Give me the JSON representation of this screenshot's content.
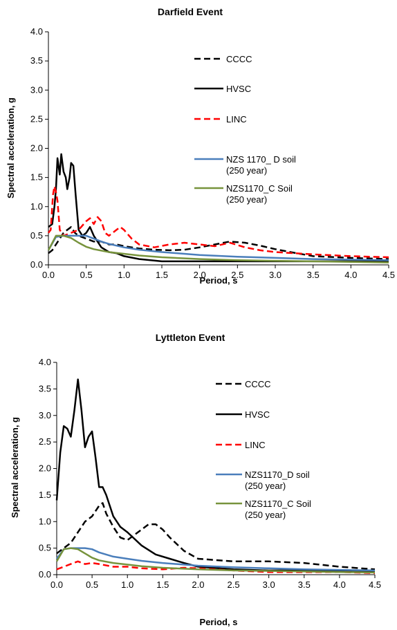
{
  "chart_data": [
    {
      "type": "line",
      "title": "Darfield Event",
      "xlabel": "Period, s",
      "ylabel": "Spectral acceleration, g",
      "xlim": [
        0,
        4.5
      ],
      "ylim": [
        0,
        4.0
      ],
      "x_ticks": [
        "0.0",
        "0.5",
        "1.0",
        "1.5",
        "2.0",
        "2.5",
        "3.0",
        "3.5",
        "4.0",
        "4.5"
      ],
      "y_ticks": [
        "0.0",
        "0.5",
        "1.0",
        "1.5",
        "2.0",
        "2.5",
        "3.0",
        "3.5",
        "4.0"
      ],
      "grid": false,
      "legend_position": "top-right",
      "series": [
        {
          "name": "CCCC",
          "color": "#000000",
          "style": "dashed",
          "x": [
            0.0,
            0.05,
            0.1,
            0.15,
            0.2,
            0.25,
            0.3,
            0.35,
            0.4,
            0.5,
            0.6,
            0.7,
            0.8,
            0.9,
            1.0,
            1.2,
            1.4,
            1.6,
            1.8,
            2.0,
            2.2,
            2.4,
            2.6,
            2.8,
            3.0,
            3.2,
            3.5,
            4.0,
            4.5
          ],
          "y": [
            0.2,
            0.25,
            0.35,
            0.45,
            0.55,
            0.6,
            0.65,
            0.55,
            0.5,
            0.45,
            0.4,
            0.4,
            0.35,
            0.35,
            0.32,
            0.28,
            0.26,
            0.25,
            0.26,
            0.3,
            0.35,
            0.4,
            0.38,
            0.33,
            0.27,
            0.22,
            0.15,
            0.12,
            0.1
          ]
        },
        {
          "name": "HVSC",
          "color": "#000000",
          "style": "solid",
          "x": [
            0.0,
            0.05,
            0.08,
            0.1,
            0.12,
            0.15,
            0.17,
            0.2,
            0.23,
            0.25,
            0.28,
            0.3,
            0.33,
            0.36,
            0.4,
            0.45,
            0.5,
            0.55,
            0.6,
            0.7,
            0.8,
            0.9,
            1.0,
            1.2,
            1.5,
            2.0,
            2.5,
            3.0,
            3.5,
            4.0,
            4.5
          ],
          "y": [
            0.65,
            0.7,
            1.0,
            1.3,
            1.83,
            1.55,
            1.9,
            1.6,
            1.5,
            1.3,
            1.5,
            1.75,
            1.7,
            1.2,
            0.6,
            0.5,
            0.55,
            0.65,
            0.5,
            0.3,
            0.22,
            0.2,
            0.15,
            0.1,
            0.06,
            0.06,
            0.06,
            0.06,
            0.06,
            0.06,
            0.06
          ]
        },
        {
          "name": "LINC",
          "color": "#ff0000",
          "style": "dashed",
          "x": [
            0.0,
            0.03,
            0.06,
            0.08,
            0.1,
            0.12,
            0.15,
            0.2,
            0.3,
            0.4,
            0.5,
            0.55,
            0.6,
            0.65,
            0.7,
            0.75,
            0.8,
            0.9,
            0.95,
            1.0,
            1.1,
            1.2,
            1.4,
            1.6,
            1.8,
            2.0,
            2.2,
            2.4,
            2.6,
            2.8,
            3.0,
            3.5,
            4.0,
            4.5
          ],
          "y": [
            0.55,
            0.6,
            1.2,
            1.35,
            1.25,
            1.1,
            0.6,
            0.5,
            0.55,
            0.6,
            0.75,
            0.8,
            0.7,
            0.82,
            0.75,
            0.55,
            0.5,
            0.6,
            0.65,
            0.6,
            0.45,
            0.35,
            0.3,
            0.35,
            0.38,
            0.35,
            0.32,
            0.38,
            0.3,
            0.25,
            0.22,
            0.18,
            0.15,
            0.13
          ]
        },
        {
          "name": "NZS 1170_ D soil (250 year)",
          "color": "#4a7ebb",
          "style": "solid",
          "x": [
            0.0,
            0.1,
            0.2,
            0.3,
            0.4,
            0.5,
            0.6,
            0.7,
            0.8,
            1.0,
            1.2,
            1.5,
            2.0,
            2.5,
            3.0,
            3.5,
            4.0,
            4.5
          ],
          "y": [
            0.25,
            0.48,
            0.5,
            0.5,
            0.5,
            0.5,
            0.45,
            0.4,
            0.36,
            0.3,
            0.26,
            0.22,
            0.17,
            0.14,
            0.12,
            0.1,
            0.09,
            0.08
          ]
        },
        {
          "name": "NZS1170_C Soil (250 year)",
          "color": "#77933c",
          "style": "solid",
          "x": [
            0.0,
            0.1,
            0.2,
            0.3,
            0.4,
            0.5,
            0.6,
            0.8,
            1.0,
            1.2,
            1.5,
            2.0,
            2.5,
            3.0,
            3.5,
            4.0,
            4.5
          ],
          "y": [
            0.25,
            0.5,
            0.5,
            0.46,
            0.38,
            0.31,
            0.27,
            0.22,
            0.19,
            0.16,
            0.13,
            0.1,
            0.08,
            0.07,
            0.06,
            0.05,
            0.04
          ]
        }
      ]
    },
    {
      "type": "line",
      "title": "Lyttleton Event",
      "xlabel": "Period, s",
      "ylabel": "Spectral acceleration, g",
      "xlim": [
        0,
        4.5
      ],
      "ylim": [
        0,
        4.0
      ],
      "x_ticks": [
        "0.0",
        "0.5",
        "1.0",
        "1.5",
        "2.0",
        "2.5",
        "3.0",
        "3.5",
        "4.0",
        "4.5"
      ],
      "y_ticks": [
        "0.0",
        "0.5",
        "1.0",
        "1.5",
        "2.0",
        "2.5",
        "3.0",
        "3.5",
        "4.0"
      ],
      "grid": false,
      "legend_position": "top-right",
      "series": [
        {
          "name": "CCCC",
          "color": "#000000",
          "style": "dashed",
          "x": [
            0.0,
            0.1,
            0.2,
            0.3,
            0.4,
            0.5,
            0.6,
            0.65,
            0.7,
            0.8,
            0.9,
            1.0,
            1.1,
            1.2,
            1.3,
            1.4,
            1.5,
            1.6,
            1.8,
            2.0,
            2.5,
            3.0,
            3.5,
            4.0,
            4.5
          ],
          "y": [
            0.4,
            0.5,
            0.6,
            0.8,
            1.0,
            1.1,
            1.3,
            1.35,
            1.15,
            0.9,
            0.7,
            0.65,
            0.75,
            0.85,
            0.95,
            0.95,
            0.85,
            0.7,
            0.45,
            0.3,
            0.25,
            0.25,
            0.22,
            0.15,
            0.1
          ]
        },
        {
          "name": "HVSC",
          "color": "#000000",
          "style": "solid",
          "x": [
            0.0,
            0.05,
            0.1,
            0.15,
            0.2,
            0.25,
            0.3,
            0.35,
            0.4,
            0.45,
            0.5,
            0.55,
            0.6,
            0.65,
            0.7,
            0.8,
            0.9,
            1.0,
            1.2,
            1.4,
            1.6,
            1.8,
            2.0,
            2.5,
            3.0,
            3.5,
            4.0,
            4.5
          ],
          "y": [
            1.4,
            2.3,
            2.8,
            2.75,
            2.6,
            3.1,
            3.68,
            3.1,
            2.4,
            2.6,
            2.7,
            2.2,
            1.65,
            1.65,
            1.5,
            1.1,
            0.9,
            0.8,
            0.55,
            0.38,
            0.3,
            0.22,
            0.15,
            0.1,
            0.08,
            0.08,
            0.07,
            0.07
          ]
        },
        {
          "name": "LINC",
          "color": "#ff0000",
          "style": "dashed",
          "x": [
            0.0,
            0.1,
            0.2,
            0.3,
            0.4,
            0.5,
            0.6,
            0.8,
            1.0,
            1.2,
            1.5,
            1.8,
            2.0,
            2.5,
            3.0,
            3.5,
            4.0,
            4.5
          ],
          "y": [
            0.1,
            0.15,
            0.2,
            0.25,
            0.2,
            0.22,
            0.2,
            0.15,
            0.15,
            0.12,
            0.1,
            0.13,
            0.12,
            0.08,
            0.05,
            0.05,
            0.05,
            0.03
          ]
        },
        {
          "name": "NZS1170_D soil (250 year)",
          "color": "#4a7ebb",
          "style": "solid",
          "x": [
            0.0,
            0.1,
            0.2,
            0.3,
            0.4,
            0.5,
            0.6,
            0.8,
            1.0,
            1.2,
            1.5,
            2.0,
            2.5,
            3.0,
            3.5,
            4.0,
            4.5
          ],
          "y": [
            0.3,
            0.48,
            0.5,
            0.5,
            0.5,
            0.48,
            0.42,
            0.34,
            0.3,
            0.26,
            0.22,
            0.17,
            0.14,
            0.12,
            0.1,
            0.09,
            0.08
          ]
        },
        {
          "name": "NZS1170_C Soil (250 year)",
          "color": "#77933c",
          "style": "solid",
          "x": [
            0.0,
            0.1,
            0.2,
            0.3,
            0.4,
            0.5,
            0.6,
            0.8,
            1.0,
            1.2,
            1.5,
            2.0,
            2.5,
            3.0,
            3.5,
            4.0,
            4.5
          ],
          "y": [
            0.25,
            0.48,
            0.5,
            0.48,
            0.4,
            0.32,
            0.27,
            0.22,
            0.19,
            0.16,
            0.13,
            0.1,
            0.08,
            0.07,
            0.06,
            0.05,
            0.04
          ]
        }
      ]
    }
  ]
}
